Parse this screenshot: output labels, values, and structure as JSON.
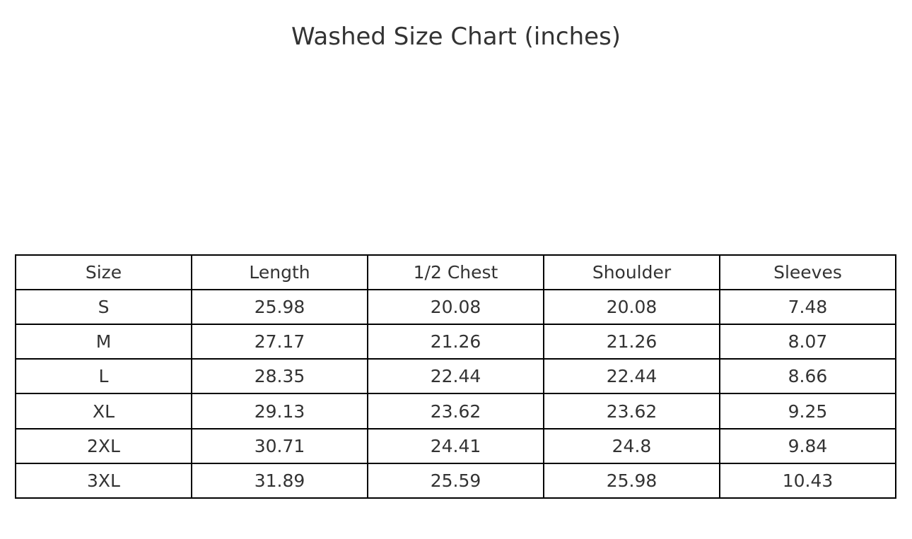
{
  "chart_data": {
    "type": "table",
    "title": "Washed Size Chart (inches)",
    "columns": [
      "Size",
      "Length",
      "1/2 Chest",
      "Shoulder",
      "Sleeves"
    ],
    "rows": [
      [
        "S",
        "25.98",
        "20.08",
        "20.08",
        "7.48"
      ],
      [
        "M",
        "27.17",
        "21.26",
        "21.26",
        "8.07"
      ],
      [
        "L",
        "28.35",
        "22.44",
        "22.44",
        "8.66"
      ],
      [
        "XL",
        "29.13",
        "23.62",
        "23.62",
        "9.25"
      ],
      [
        "2XL",
        "30.71",
        "24.41",
        "24.8",
        "9.84"
      ],
      [
        "3XL",
        "31.89",
        "25.59",
        "25.98",
        "10.43"
      ]
    ],
    "border_color": "#000000",
    "text_color": "#333333"
  }
}
